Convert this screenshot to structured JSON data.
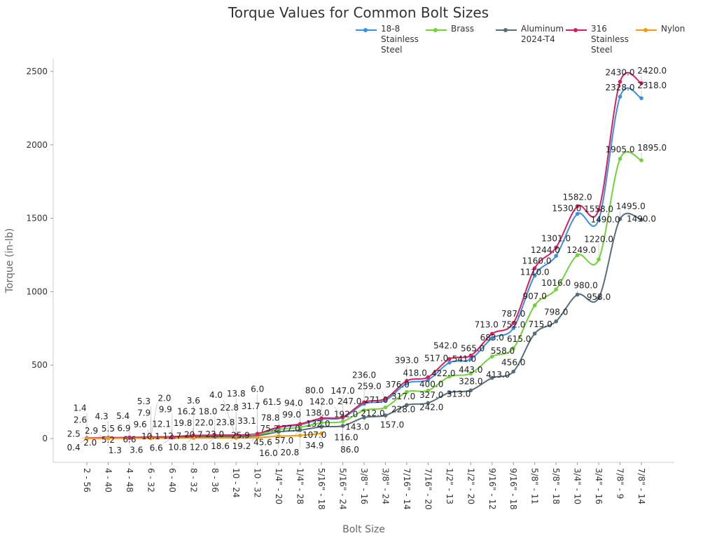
{
  "chart_data": {
    "type": "line",
    "title": "Torque Values for Common Bolt Sizes",
    "xlabel": "Bolt Size",
    "ylabel": "Torque (in-lb)",
    "ylim": [
      -150,
      2600
    ],
    "yticks": [
      0,
      500,
      1000,
      1500,
      2000,
      2500
    ],
    "grid": false,
    "legend": "top-right",
    "categories": [
      "2 - 56",
      "4 - 40",
      "4 - 48",
      "6 - 32",
      "6 - 40",
      "8 - 32",
      "8 - 36",
      "10 - 24",
      "10 - 32",
      "1/4\" - 20",
      "1/4\" - 28",
      "5/16\" - 18",
      "5/16\" - 24",
      "3/8\" - 16",
      "3/8\" - 24",
      "7/16\" - 14",
      "7/16\" - 20",
      "1/2\" - 13",
      "1/2\" - 20",
      "9/16\" - 12",
      "9/16\" - 18",
      "5/8\" - 11",
      "5/8\" - 18",
      "3/4\" - 10",
      "3/4\" - 16",
      "7/8\" - 9",
      "7/8\" - 14"
    ],
    "series": [
      {
        "name": "18-8 Stainless Steel",
        "color": "#3b8fe0",
        "values": [
          2.5,
          5.2,
          6.6,
          9.6,
          12.1,
          19.8,
          22.0,
          22.8,
          31.7,
          75.2,
          94.0,
          132.0,
          142.0,
          236.0,
          259.0,
          376.0,
          400.0,
          517.0,
          541.0,
          683.0,
          752.0,
          1110.0,
          1244.0,
          1530.0,
          1490.0,
          2328.0,
          2318.0
        ]
      },
      {
        "name": "Brass",
        "color": "#72d13a",
        "values": [
          2.0,
          4.3,
          5.4,
          7.9,
          9.9,
          16.2,
          18.0,
          18.6,
          25.9,
          61.5,
          77.0,
          107.0,
          116.0,
          192.0,
          212.0,
          317.0,
          327.0,
          422.0,
          443.0,
          558.0,
          615.0,
          907.0,
          1016.0,
          1249.0,
          1220.0,
          1905.0,
          1895.0
        ]
      },
      {
        "name": "Aluminum 2024-T4",
        "color": "#566d7a",
        "values": [
          1.4,
          2.9,
          3.6,
          5.3,
          6.6,
          10.8,
          12.0,
          13.8,
          19.2,
          45.6,
          57.0,
          80.0,
          86.0,
          143.0,
          157.0,
          228.0,
          242.0,
          313.0,
          328.0,
          413.0,
          456.0,
          715.0,
          798.0,
          980.0,
          958.0,
          1495.0,
          1490.0
        ]
      },
      {
        "name": "316 Stainless Steel",
        "color": "#d81f5d",
        "values": [
          2.6,
          5.5,
          6.9,
          10.1,
          12.7,
          20.7,
          23.0,
          23.8,
          33.1,
          78.8,
          99.0,
          138.0,
          147.0,
          247.0,
          271.0,
          393.0,
          418.0,
          542.0,
          565.0,
          713.0,
          787.0,
          1160.0,
          1301.0,
          1582.0,
          1558.0,
          2430.0,
          2420.0
        ]
      },
      {
        "name": "Nylon",
        "color": "#f39c12",
        "values": [
          0.4,
          1.3,
          null,
          2.0,
          null,
          3.6,
          null,
          4.0,
          6.0,
          16.0,
          20.8,
          34.9,
          null,
          null,
          null,
          null,
          null,
          null,
          null,
          null,
          null,
          null,
          null,
          null,
          null,
          null,
          null
        ]
      }
    ]
  },
  "legend_labels": [
    [
      "18-8",
      "Stainless",
      "Steel"
    ],
    [
      "Brass"
    ],
    [
      "Aluminum",
      "2024-T4"
    ],
    [
      "316",
      "Stainless",
      "Steel"
    ],
    [
      "Nylon"
    ]
  ]
}
